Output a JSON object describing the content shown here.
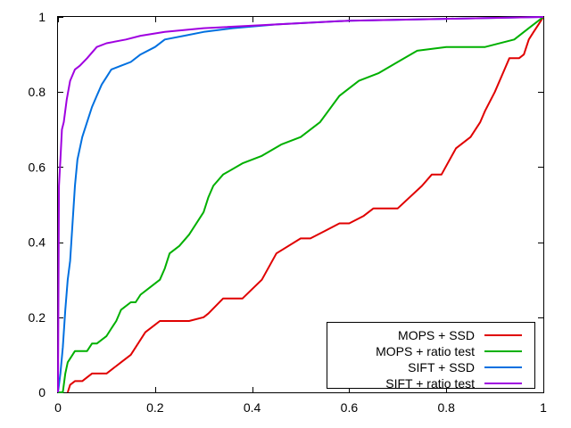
{
  "chart_data": {
    "type": "line",
    "title": "",
    "xlabel": "",
    "ylabel": "",
    "xlim": [
      0,
      1
    ],
    "ylim": [
      0,
      1
    ],
    "xticks": [
      "0",
      "0.2",
      "0.4",
      "0.6",
      "0.8",
      "1"
    ],
    "yticks": [
      "0",
      "0.2",
      "0.4",
      "0.6",
      "0.8",
      "1"
    ],
    "grid": false,
    "legend_position": "bottom-right",
    "series": [
      {
        "name": "MOPS + SSD",
        "color": "#e00000",
        "points": [
          [
            0.02,
            0
          ],
          [
            0.025,
            0.02
          ],
          [
            0.035,
            0.03
          ],
          [
            0.05,
            0.03
          ],
          [
            0.06,
            0.04
          ],
          [
            0.07,
            0.05
          ],
          [
            0.1,
            0.05
          ],
          [
            0.12,
            0.07
          ],
          [
            0.13,
            0.08
          ],
          [
            0.15,
            0.1
          ],
          [
            0.18,
            0.16
          ],
          [
            0.2,
            0.18
          ],
          [
            0.21,
            0.19
          ],
          [
            0.27,
            0.19
          ],
          [
            0.3,
            0.2
          ],
          [
            0.31,
            0.21
          ],
          [
            0.34,
            0.25
          ],
          [
            0.38,
            0.25
          ],
          [
            0.42,
            0.3
          ],
          [
            0.45,
            0.37
          ],
          [
            0.5,
            0.41
          ],
          [
            0.52,
            0.41
          ],
          [
            0.55,
            0.43
          ],
          [
            0.58,
            0.45
          ],
          [
            0.6,
            0.45
          ],
          [
            0.63,
            0.47
          ],
          [
            0.65,
            0.49
          ],
          [
            0.7,
            0.49
          ],
          [
            0.75,
            0.55
          ],
          [
            0.77,
            0.58
          ],
          [
            0.79,
            0.58
          ],
          [
            0.82,
            0.65
          ],
          [
            0.85,
            0.68
          ],
          [
            0.87,
            0.72
          ],
          [
            0.88,
            0.75
          ],
          [
            0.9,
            0.8
          ],
          [
            0.92,
            0.86
          ],
          [
            0.93,
            0.89
          ],
          [
            0.95,
            0.89
          ],
          [
            0.96,
            0.9
          ],
          [
            0.97,
            0.94
          ],
          [
            0.98,
            0.96
          ],
          [
            0.99,
            0.98
          ],
          [
            1,
            1
          ]
        ]
      },
      {
        "name": "MOPS + ratio test",
        "color": "#00b000",
        "points": [
          [
            0,
            0
          ],
          [
            0.01,
            0
          ],
          [
            0.015,
            0.05
          ],
          [
            0.02,
            0.08
          ],
          [
            0.03,
            0.1
          ],
          [
            0.035,
            0.11
          ],
          [
            0.06,
            0.11
          ],
          [
            0.07,
            0.13
          ],
          [
            0.08,
            0.13
          ],
          [
            0.1,
            0.15
          ],
          [
            0.11,
            0.17
          ],
          [
            0.12,
            0.19
          ],
          [
            0.13,
            0.22
          ],
          [
            0.15,
            0.24
          ],
          [
            0.16,
            0.24
          ],
          [
            0.17,
            0.26
          ],
          [
            0.19,
            0.28
          ],
          [
            0.21,
            0.3
          ],
          [
            0.22,
            0.33
          ],
          [
            0.23,
            0.37
          ],
          [
            0.25,
            0.39
          ],
          [
            0.27,
            0.42
          ],
          [
            0.29,
            0.46
          ],
          [
            0.3,
            0.48
          ],
          [
            0.31,
            0.52
          ],
          [
            0.32,
            0.55
          ],
          [
            0.34,
            0.58
          ],
          [
            0.38,
            0.61
          ],
          [
            0.42,
            0.63
          ],
          [
            0.46,
            0.66
          ],
          [
            0.5,
            0.68
          ],
          [
            0.54,
            0.72
          ],
          [
            0.58,
            0.79
          ],
          [
            0.62,
            0.83
          ],
          [
            0.66,
            0.85
          ],
          [
            0.7,
            0.88
          ],
          [
            0.74,
            0.91
          ],
          [
            0.8,
            0.92
          ],
          [
            0.88,
            0.92
          ],
          [
            0.94,
            0.94
          ],
          [
            0.97,
            0.97
          ],
          [
            1,
            1
          ]
        ]
      },
      {
        "name": "SIFT + SSD",
        "color": "#0070e0",
        "points": [
          [
            0,
            0
          ],
          [
            0.005,
            0.05
          ],
          [
            0.01,
            0.12
          ],
          [
            0.015,
            0.22
          ],
          [
            0.02,
            0.3
          ],
          [
            0.025,
            0.35
          ],
          [
            0.03,
            0.45
          ],
          [
            0.035,
            0.55
          ],
          [
            0.04,
            0.62
          ],
          [
            0.05,
            0.68
          ],
          [
            0.06,
            0.72
          ],
          [
            0.07,
            0.76
          ],
          [
            0.08,
            0.79
          ],
          [
            0.09,
            0.82
          ],
          [
            0.1,
            0.84
          ],
          [
            0.11,
            0.86
          ],
          [
            0.13,
            0.87
          ],
          [
            0.15,
            0.88
          ],
          [
            0.17,
            0.9
          ],
          [
            0.2,
            0.92
          ],
          [
            0.22,
            0.94
          ],
          [
            0.26,
            0.95
          ],
          [
            0.3,
            0.96
          ],
          [
            0.36,
            0.97
          ],
          [
            0.45,
            0.98
          ],
          [
            0.6,
            0.99
          ],
          [
            0.8,
            0.995
          ],
          [
            1,
            1
          ]
        ]
      },
      {
        "name": "SIFT + ratio test",
        "color": "#a000e0",
        "points": [
          [
            0,
            0
          ],
          [
            0.002,
            0.55
          ],
          [
            0.005,
            0.62
          ],
          [
            0.008,
            0.7
          ],
          [
            0.012,
            0.72
          ],
          [
            0.018,
            0.78
          ],
          [
            0.025,
            0.83
          ],
          [
            0.035,
            0.86
          ],
          [
            0.045,
            0.87
          ],
          [
            0.06,
            0.89
          ],
          [
            0.08,
            0.92
          ],
          [
            0.1,
            0.93
          ],
          [
            0.14,
            0.94
          ],
          [
            0.17,
            0.95
          ],
          [
            0.22,
            0.96
          ],
          [
            0.3,
            0.97
          ],
          [
            0.45,
            0.98
          ],
          [
            0.6,
            0.99
          ],
          [
            0.8,
            0.995
          ],
          [
            1,
            1
          ]
        ]
      }
    ]
  }
}
